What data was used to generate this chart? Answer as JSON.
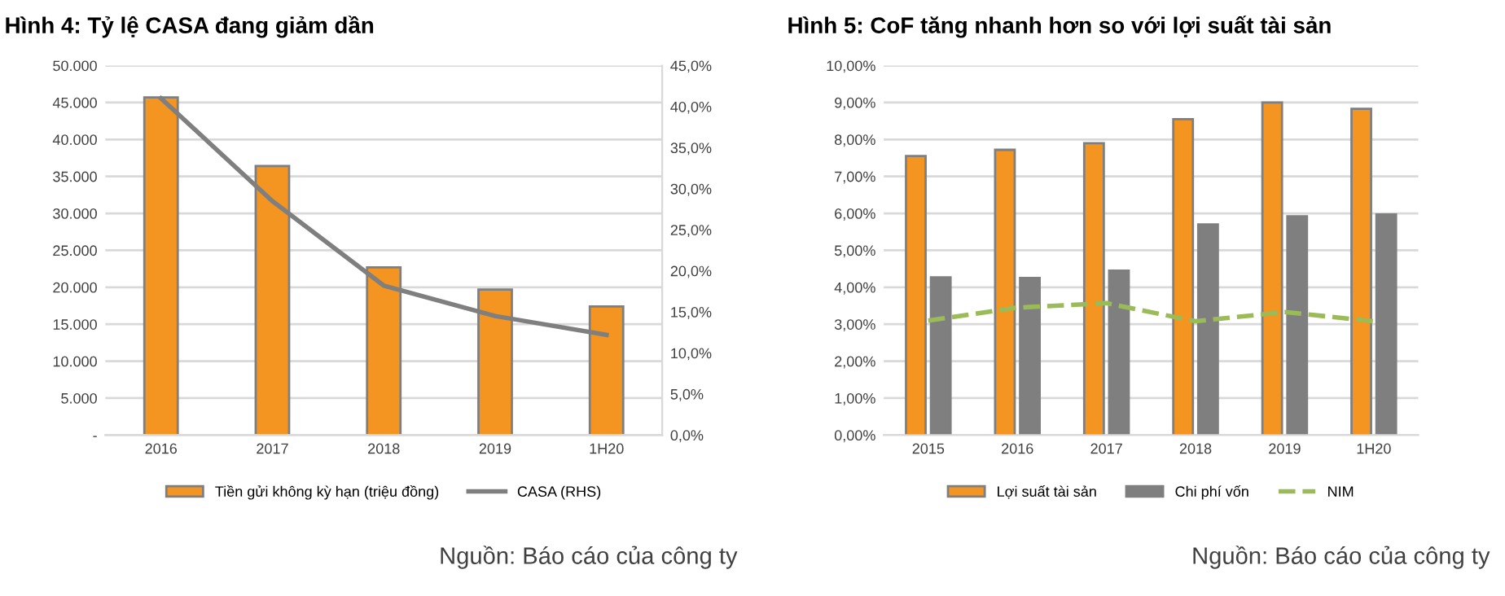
{
  "chart_data": [
    {
      "type": "bar",
      "title": "Hình 4: Tỷ lệ CASA đang giảm dần",
      "categories": [
        "2016",
        "2017",
        "2018",
        "2019",
        "1H20"
      ],
      "series": [
        {
          "name": "Tiền gửi không kỳ hạn (triệu đồng)",
          "color": "#f39520",
          "values": [
            45700,
            36400,
            22700,
            19700,
            17400
          ]
        },
        {
          "name": "CASA (RHS)",
          "type": "line",
          "axis": "y2",
          "color": "#7f7f7f",
          "values": [
            41.0,
            28.5,
            18.2,
            14.5,
            12.2
          ]
        }
      ],
      "ylim": [
        0,
        50000
      ],
      "yticks": [
        {
          "value": 0,
          "label": "-"
        },
        {
          "value": 5000,
          "label": "5.000"
        },
        {
          "value": 10000,
          "label": "10.000"
        },
        {
          "value": 15000,
          "label": "15.000"
        },
        {
          "value": 20000,
          "label": "20.000"
        },
        {
          "value": 25000,
          "label": "25.000"
        },
        {
          "value": 30000,
          "label": "30.000"
        },
        {
          "value": 35000,
          "label": "35.000"
        },
        {
          "value": 40000,
          "label": "40.000"
        },
        {
          "value": 45000,
          "label": "45.000"
        },
        {
          "value": 50000,
          "label": "50.000"
        }
      ],
      "y2lim": [
        0,
        45
      ],
      "y2ticks": [
        {
          "value": 0,
          "label": "0,0%"
        },
        {
          "value": 5,
          "label": "5,0%"
        },
        {
          "value": 10,
          "label": "10,0%"
        },
        {
          "value": 15,
          "label": "15,0%"
        },
        {
          "value": 20,
          "label": "20,0%"
        },
        {
          "value": 25,
          "label": "25,0%"
        },
        {
          "value": 30,
          "label": "30,0%"
        },
        {
          "value": 35,
          "label": "35,0%"
        },
        {
          "value": 40,
          "label": "40,0%"
        },
        {
          "value": 45,
          "label": "45,0%"
        }
      ],
      "grid": "y",
      "legend": "bottom",
      "annotations": [
        "Nguồn: Báo cáo của công ty"
      ]
    },
    {
      "type": "bar",
      "title": "Hình 5: CoF tăng nhanh hơn so với lợi suất tài sản",
      "categories": [
        "2015",
        "2016",
        "2017",
        "2018",
        "2019",
        "1H20"
      ],
      "series": [
        {
          "name": "Lợi suất tài sản",
          "color": "#f39520",
          "values": [
            7.55,
            7.72,
            7.9,
            8.55,
            9.0,
            8.83
          ]
        },
        {
          "name": "Chi phí vốn",
          "color": "#7f7f80",
          "values": [
            4.27,
            4.25,
            4.45,
            5.7,
            5.92,
            5.97
          ]
        },
        {
          "name": "NIM",
          "type": "line",
          "line_style": "dashed",
          "color": "#9bbb59",
          "values": [
            3.1,
            3.45,
            3.57,
            3.08,
            3.33,
            3.08
          ]
        }
      ],
      "ylim": [
        0,
        10
      ],
      "yticks": [
        {
          "value": 0,
          "label": "0,00%"
        },
        {
          "value": 1,
          "label": "1,00%"
        },
        {
          "value": 2,
          "label": "2,00%"
        },
        {
          "value": 3,
          "label": "3,00%"
        },
        {
          "value": 4,
          "label": "4,00%"
        },
        {
          "value": 5,
          "label": "5,00%"
        },
        {
          "value": 6,
          "label": "6,00%"
        },
        {
          "value": 7,
          "label": "7,00%"
        },
        {
          "value": 8,
          "label": "8,00%"
        },
        {
          "value": 9,
          "label": "9,00%"
        },
        {
          "value": 10,
          "label": "10,00%"
        }
      ],
      "grid": "y",
      "legend": "bottom",
      "annotations": [
        "Nguồn: Báo cáo của công ty"
      ]
    }
  ]
}
